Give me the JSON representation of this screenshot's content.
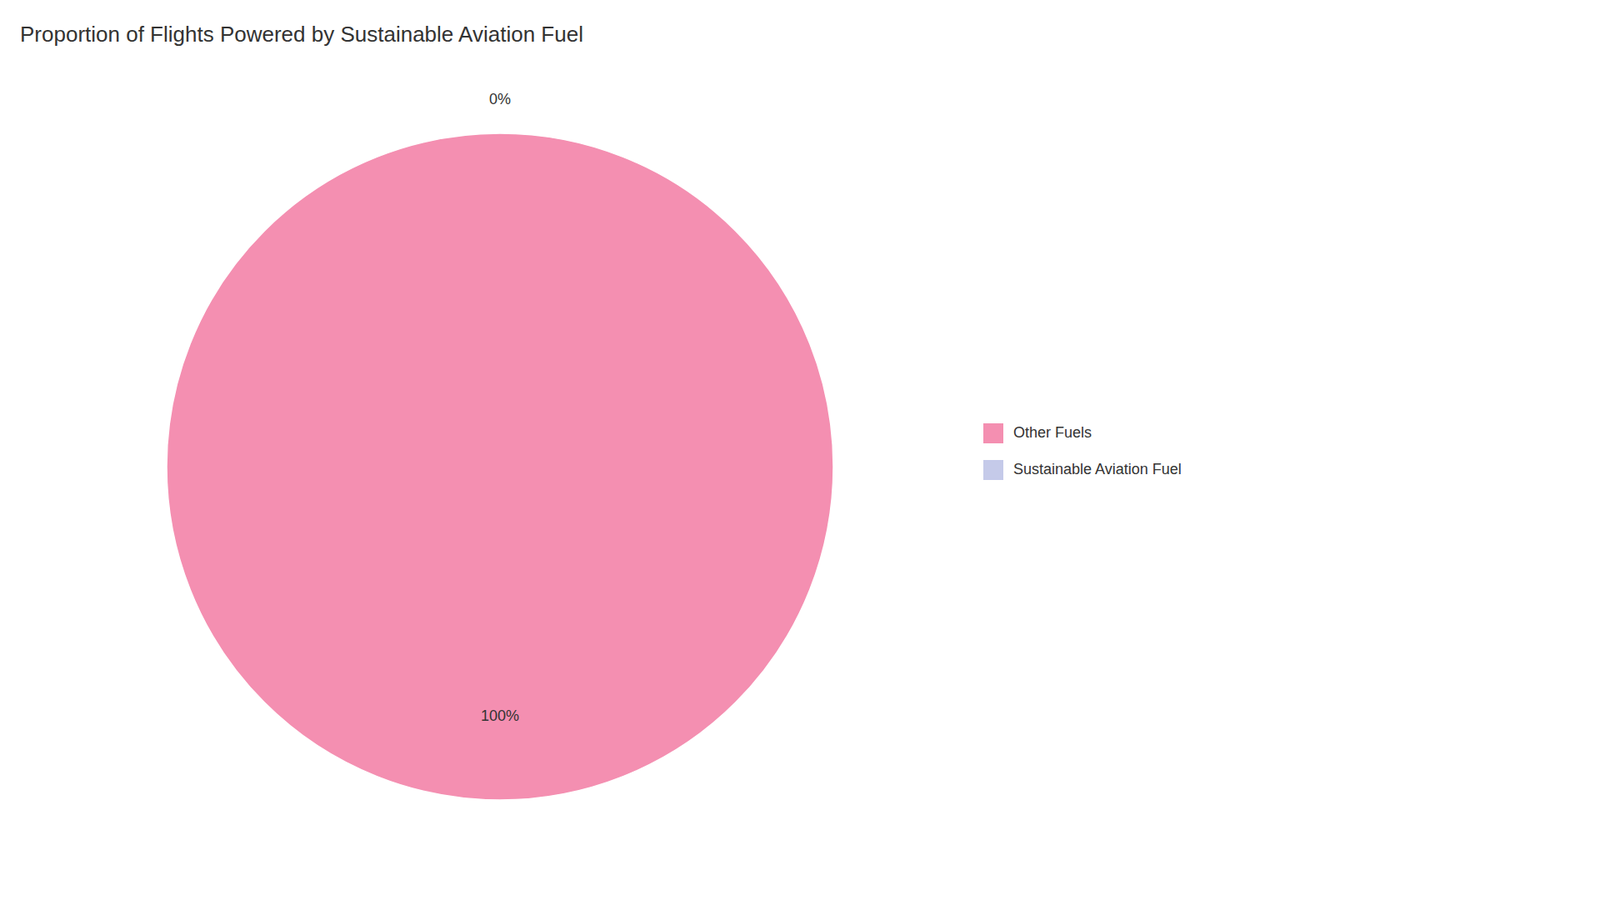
{
  "chart_data": {
    "type": "pie",
    "title": "Proportion of Flights Powered by Sustainable Aviation Fuel",
    "categories": [
      "Sustainable Aviation Fuel",
      "Other Fuels"
    ],
    "values": [
      0,
      100
    ],
    "value_labels": [
      "0%",
      "100%"
    ],
    "colors": [
      "#c5cae9",
      "#f48fb1"
    ],
    "data_labels": true,
    "legend": "right"
  }
}
